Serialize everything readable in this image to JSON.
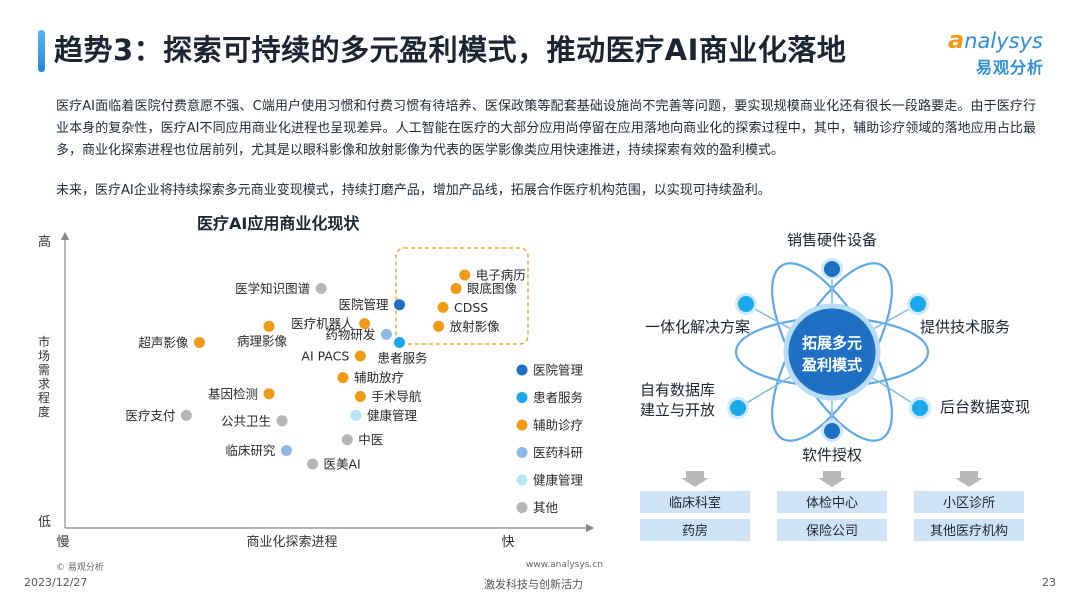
{
  "header": {
    "title": "趋势3：探索可持续的多元盈利模式，推动医疗AI商业化落地",
    "logo_en_first": "a",
    "logo_en_rest": "nalysys",
    "logo_cn": "易观分析"
  },
  "body": {
    "paragraph1": "医疗AI面临着医院付费意愿不强、C端用户使用习惯和付费习惯有待培养、医保政策等配套基础设施尚不完善等问题，要实现规模商业化还有很长一段路要走。由于医疗行业本身的复杂性，医疗AI不同应用商业化进程也呈现差异。人工智能在医疗的大部分应用尚停留在应用落地向商业化的探索过程中，其中，辅助诊疗领域的落地应用占比最多，商业化探索进程也位居前列，尤其是以眼科影像和放射影像为代表的医学影像类应用快速推进，持续探索有效的盈利模式。",
    "paragraph2": "未来，医疗AI企业将持续探索多元商业变现模式，持续打磨产品，增加产品线，拓展合作医疗机构范围，以实现可持续盈利。"
  },
  "chart_data": {
    "type": "scatter",
    "title": "医疗AI应用商业化现状",
    "xlabel": "商业化探索进程",
    "ylabel": "市场需求程度",
    "x_low": "慢",
    "x_high": "快",
    "y_low": "低",
    "y_high": "高",
    "xlim": [
      0,
      100
    ],
    "ylim": [
      0,
      100
    ],
    "categories": [
      {
        "name": "医院管理",
        "color": "#1f6fc5"
      },
      {
        "name": "患者服务",
        "color": "#1aa7ec"
      },
      {
        "name": "辅助诊疗",
        "color": "#f29a15"
      },
      {
        "name": "医药科研",
        "color": "#8fb8ea"
      },
      {
        "name": "健康管理",
        "color": "#b9e3f7"
      },
      {
        "name": "其他",
        "color": "#b5b5b5"
      }
    ],
    "points": [
      {
        "label": "电子病历",
        "x": 85,
        "y": 90,
        "cat": 2,
        "side": "right"
      },
      {
        "label": "眼底图像",
        "x": 83,
        "y": 85,
        "cat": 2,
        "side": "right"
      },
      {
        "label": "CDSS",
        "x": 80,
        "y": 78,
        "cat": 2,
        "side": "right"
      },
      {
        "label": "放射影像",
        "x": 79,
        "y": 71,
        "cat": 2,
        "side": "right"
      },
      {
        "label": "医学知识图谱",
        "x": 52,
        "y": 85,
        "cat": 5,
        "side": "left"
      },
      {
        "label": "医院管理",
        "x": 70,
        "y": 79,
        "cat": 0,
        "side": "left"
      },
      {
        "label": "医疗机器人",
        "x": 62,
        "y": 72,
        "cat": 2,
        "side": "left"
      },
      {
        "label": "药物研发",
        "x": 67,
        "y": 68,
        "cat": 3,
        "side": "left"
      },
      {
        "label": "患者服务",
        "x": 70,
        "y": 65,
        "cat": 1,
        "side": "below-right"
      },
      {
        "label": "超声影像",
        "x": 24,
        "y": 65,
        "cat": 2,
        "side": "left"
      },
      {
        "label": "病理影像",
        "x": 40,
        "y": 71,
        "cat": 2,
        "side": "below-left"
      },
      {
        "label": "AI PACS",
        "x": 61,
        "y": 60,
        "cat": 2,
        "side": "left"
      },
      {
        "label": "辅助放疗",
        "x": 57,
        "y": 52,
        "cat": 2,
        "side": "right"
      },
      {
        "label": "基因检测",
        "x": 40,
        "y": 46,
        "cat": 2,
        "side": "left"
      },
      {
        "label": "手术导航",
        "x": 61,
        "y": 45,
        "cat": 2,
        "side": "right"
      },
      {
        "label": "医疗支付",
        "x": 21,
        "y": 38,
        "cat": 5,
        "side": "left"
      },
      {
        "label": "公共卫生",
        "x": 43,
        "y": 36,
        "cat": 5,
        "side": "left"
      },
      {
        "label": "健康管理",
        "x": 60,
        "y": 38,
        "cat": 4,
        "side": "right"
      },
      {
        "label": "中医",
        "x": 58,
        "y": 29,
        "cat": 5,
        "side": "right"
      },
      {
        "label": "临床研究",
        "x": 44,
        "y": 25,
        "cat": 3,
        "side": "left"
      },
      {
        "label": "医美AI",
        "x": 50,
        "y": 20,
        "cat": 5,
        "side": "right"
      }
    ]
  },
  "diagram": {
    "center": "拓展多元\n盈利模式",
    "top": "销售硬件设备",
    "bottom": "软件授权",
    "upper_left": "一体化解决方案",
    "upper_right": "提供技术服务",
    "lower_left": "自有数据库\n建立与开放",
    "lower_right": "后台数据变现",
    "targets": [
      [
        "临床科室",
        "药房"
      ],
      [
        "体检中心",
        "保险公司"
      ],
      [
        "小区诊所",
        "其他医疗机构"
      ]
    ]
  },
  "footer": {
    "copyright": "© 易观分析",
    "url": "www.analysys.cn",
    "date": "2023/12/27",
    "slogan": "激发科技与创新活力",
    "page": "23"
  }
}
